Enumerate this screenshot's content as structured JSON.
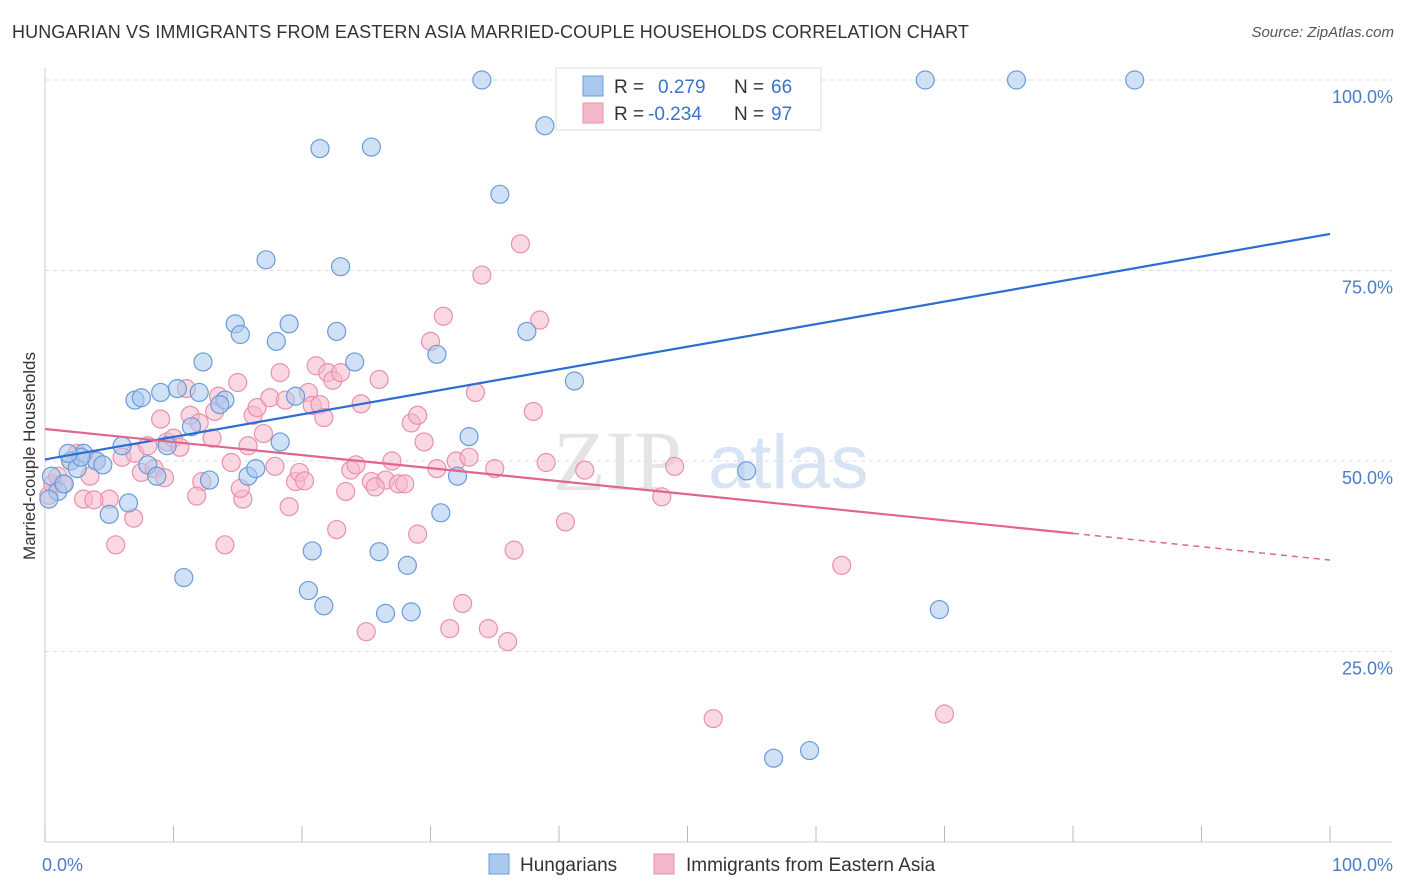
{
  "title": "HUNGARIAN VS IMMIGRANTS FROM EASTERN ASIA MARRIED-COUPLE HOUSEHOLDS CORRELATION CHART",
  "source": "Source: ZipAtlas.com",
  "watermark": {
    "zip": "ZIP",
    "atlas": "atlas"
  },
  "colors": {
    "blue_fill": "#a9c8ee",
    "blue_stroke": "#6a9bd8",
    "blue_line": "#2a6fd0",
    "pink_fill": "#f5b8cb",
    "pink_stroke": "#e891ad",
    "pink_line": "#e0658f",
    "axis_text": "#4a7cc9",
    "grid": "#dddddd"
  },
  "legend": {
    "r_label": "R =",
    "n_label": "N =",
    "blue": {
      "r": "0.279",
      "n": "66"
    },
    "pink": {
      "r": "-0.234",
      "n": "97"
    }
  },
  "chart_data": {
    "type": "scatter",
    "ylabel": "Married-couple Households",
    "xlabel": "",
    "xlim": [
      0,
      100
    ],
    "ylim": [
      0,
      100
    ],
    "x_tick_labels": {
      "left": "0.0%",
      "right": "100.0%"
    },
    "y_ticks": [
      {
        "value": 25,
        "label": "25.0%"
      },
      {
        "value": 50,
        "label": "50.0%"
      },
      {
        "value": 75,
        "label": "75.0%"
      },
      {
        "value": 100,
        "label": "100.0%"
      }
    ],
    "series": [
      {
        "name": "Hungarians",
        "color": "blue",
        "trend": {
          "x0": 0,
          "y0": 50.2,
          "x1": 100,
          "y1": 79.8
        },
        "points": [
          [
            0.5,
            48
          ],
          [
            1,
            46
          ],
          [
            1.5,
            47
          ],
          [
            2,
            50
          ],
          [
            2.5,
            49
          ],
          [
            3,
            51
          ],
          [
            4,
            50
          ],
          [
            4.5,
            49.5
          ],
          [
            5,
            43
          ],
          [
            6,
            52
          ],
          [
            6.5,
            44.5
          ],
          [
            7,
            58
          ],
          [
            7.5,
            58.3
          ],
          [
            8,
            49.5
          ],
          [
            8.7,
            48
          ],
          [
            9,
            59
          ],
          [
            9.5,
            52
          ],
          [
            10.3,
            59.5
          ],
          [
            10.8,
            34.7
          ],
          [
            11.4,
            54.5
          ],
          [
            12,
            59
          ],
          [
            12.3,
            63
          ],
          [
            12.8,
            47.5
          ],
          [
            14,
            58
          ],
          [
            14.8,
            68
          ],
          [
            15.2,
            66.6
          ],
          [
            15.8,
            48
          ],
          [
            16.4,
            49
          ],
          [
            17.2,
            76.4
          ],
          [
            18,
            65.7
          ],
          [
            18.3,
            52.5
          ],
          [
            19,
            68
          ],
          [
            19.5,
            58.5
          ],
          [
            20.5,
            33
          ],
          [
            20.8,
            38.2
          ],
          [
            21.4,
            91
          ],
          [
            21.7,
            31
          ],
          [
            22.7,
            67
          ],
          [
            23,
            75.5
          ],
          [
            24.1,
            63
          ],
          [
            25.4,
            91.2
          ],
          [
            26,
            38.1
          ],
          [
            26.5,
            30
          ],
          [
            28.2,
            36.3
          ],
          [
            28.5,
            30.2
          ],
          [
            30.5,
            64
          ],
          [
            30.8,
            43.2
          ],
          [
            32.1,
            48
          ],
          [
            33,
            53.2
          ],
          [
            34,
            100
          ],
          [
            35.4,
            85
          ],
          [
            37.5,
            67
          ],
          [
            38.9,
            94
          ],
          [
            41,
            96
          ],
          [
            41.2,
            60.5
          ],
          [
            54.6,
            48.7
          ],
          [
            56.7,
            11
          ],
          [
            59.5,
            12
          ],
          [
            68.5,
            100
          ],
          [
            69.6,
            30.5
          ],
          [
            75.6,
            100
          ],
          [
            84.8,
            100
          ],
          [
            0.3,
            45
          ],
          [
            2.8,
            50.5
          ],
          [
            13.6,
            57.4
          ],
          [
            1.8,
            51
          ]
        ]
      },
      {
        "name": "Immigrants from Eastern Asia",
        "color": "pink",
        "trend": {
          "x0": 0,
          "y0": 54.2,
          "x1": 80,
          "y1": 40.5,
          "x2": 100,
          "y2": 37
        },
        "points": [
          [
            0.3,
            45.5
          ],
          [
            0.6,
            47
          ],
          [
            1,
            48
          ],
          [
            1.4,
            47
          ],
          [
            2,
            50
          ],
          [
            2.5,
            51
          ],
          [
            3,
            45
          ],
          [
            3.5,
            48
          ],
          [
            4,
            50
          ],
          [
            5,
            45
          ],
          [
            5.5,
            39
          ],
          [
            6,
            50.5
          ],
          [
            7,
            51
          ],
          [
            7.5,
            48.5
          ],
          [
            8,
            52
          ],
          [
            8.5,
            49
          ],
          [
            9,
            55.5
          ],
          [
            9.5,
            52.5
          ],
          [
            10,
            53
          ],
          [
            10.5,
            51.8
          ],
          [
            11,
            59.5
          ],
          [
            11.3,
            56
          ],
          [
            12,
            55
          ],
          [
            12.2,
            47.3
          ],
          [
            13,
            53
          ],
          [
            13.2,
            56.5
          ],
          [
            13.5,
            58.5
          ],
          [
            14,
            39
          ],
          [
            14.5,
            49.8
          ],
          [
            15,
            60.3
          ],
          [
            15.4,
            45
          ],
          [
            15.8,
            52
          ],
          [
            16.2,
            56
          ],
          [
            16.5,
            57
          ],
          [
            17,
            53.6
          ],
          [
            17.5,
            58.3
          ],
          [
            17.9,
            49.3
          ],
          [
            18.3,
            61.6
          ],
          [
            18.7,
            58
          ],
          [
            19,
            44
          ],
          [
            19.5,
            47.3
          ],
          [
            19.8,
            48.5
          ],
          [
            20.2,
            47.4
          ],
          [
            20.5,
            59
          ],
          [
            20.8,
            57.3
          ],
          [
            21.1,
            62.5
          ],
          [
            21.4,
            57.4
          ],
          [
            21.7,
            55.7
          ],
          [
            22,
            61.6
          ],
          [
            22.4,
            60.6
          ],
          [
            22.7,
            41
          ],
          [
            23,
            61.6
          ],
          [
            23.4,
            46
          ],
          [
            23.8,
            48.8
          ],
          [
            24.2,
            49.5
          ],
          [
            24.6,
            57.5
          ],
          [
            25,
            27.6
          ],
          [
            25.4,
            47.3
          ],
          [
            26,
            60.7
          ],
          [
            26.5,
            47.5
          ],
          [
            27,
            50
          ],
          [
            27.5,
            47
          ],
          [
            28,
            47
          ],
          [
            28.5,
            55
          ],
          [
            29,
            56
          ],
          [
            29.5,
            52.5
          ],
          [
            30,
            65.7
          ],
          [
            30.5,
            49
          ],
          [
            31,
            69
          ],
          [
            31.5,
            28
          ],
          [
            32,
            50
          ],
          [
            32.5,
            31.3
          ],
          [
            33,
            50.5
          ],
          [
            33.5,
            59
          ],
          [
            34,
            74.4
          ],
          [
            34.5,
            28
          ],
          [
            35,
            49
          ],
          [
            36,
            26.3
          ],
          [
            36.5,
            38.3
          ],
          [
            37,
            78.5
          ],
          [
            38,
            56.5
          ],
          [
            38.5,
            68.5
          ],
          [
            39,
            49.8
          ],
          [
            40.5,
            42
          ],
          [
            42,
            48.8
          ],
          [
            48,
            45.3
          ],
          [
            49,
            49.3
          ],
          [
            52,
            16.2
          ],
          [
            62,
            36.3
          ],
          [
            70,
            16.8
          ],
          [
            6.9,
            42.5
          ],
          [
            3.8,
            44.9
          ],
          [
            11.8,
            45.4
          ],
          [
            15.2,
            46.4
          ],
          [
            9.3,
            47.8
          ],
          [
            25.7,
            46.6
          ],
          [
            29,
            40.4
          ]
        ]
      }
    ]
  }
}
